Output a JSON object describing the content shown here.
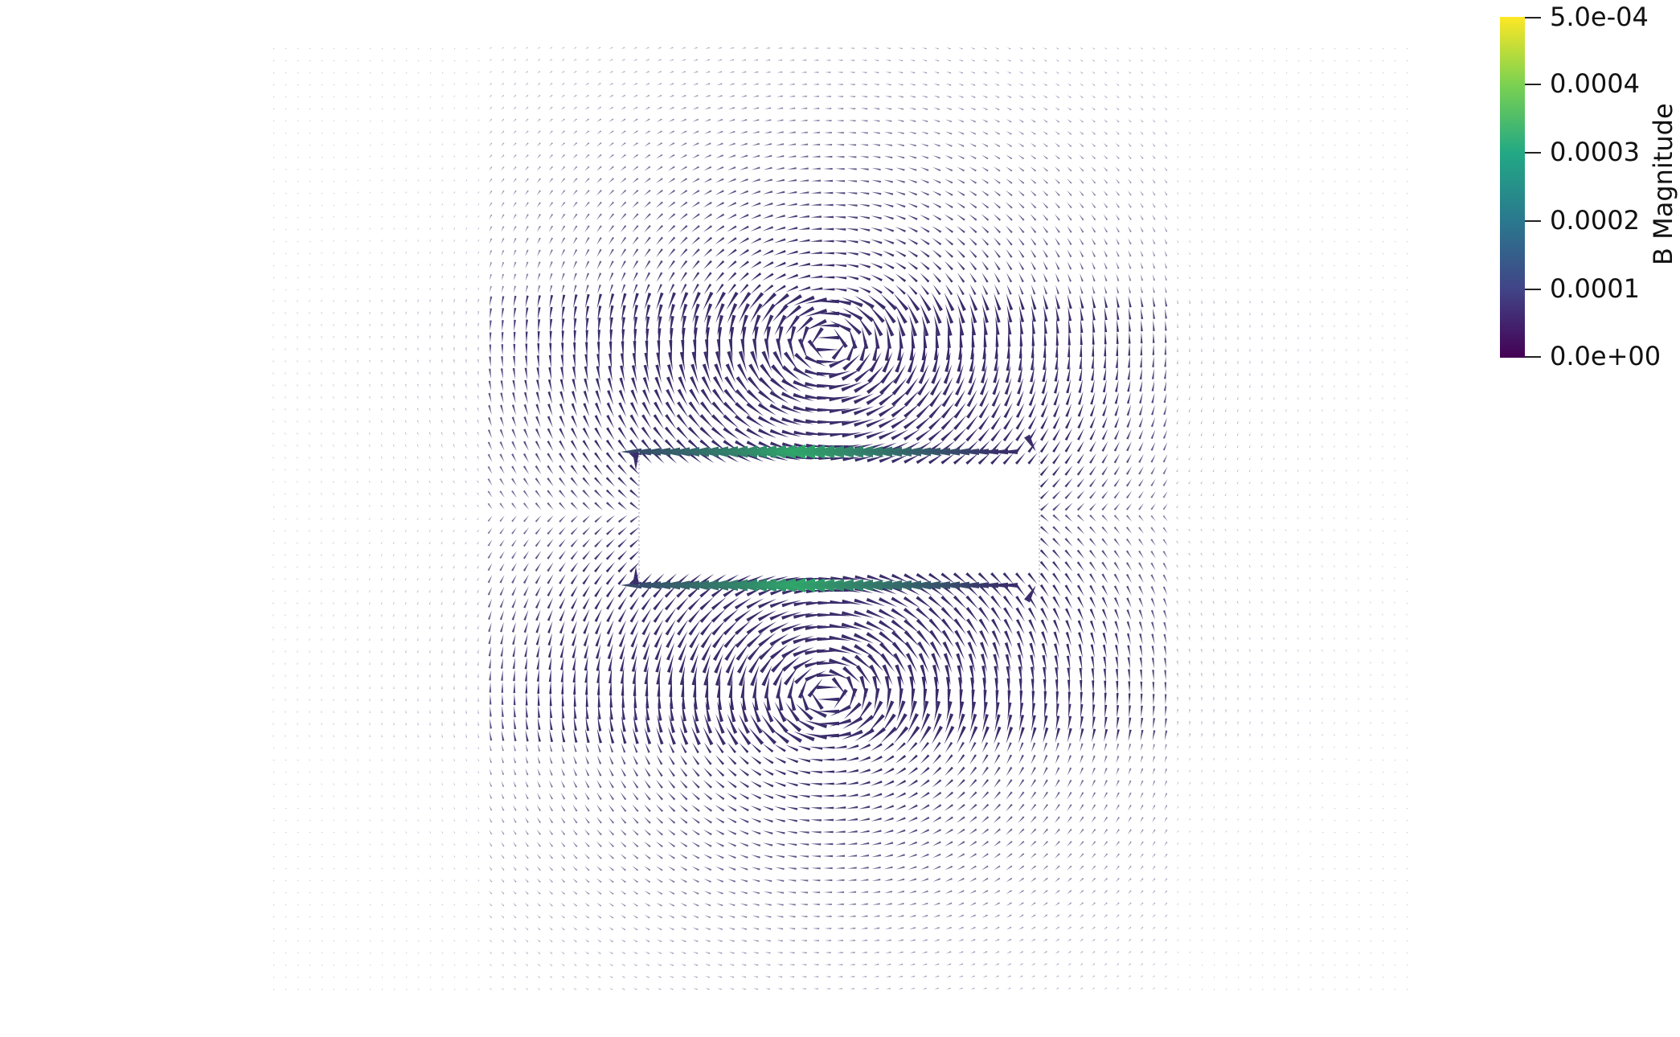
{
  "view": {
    "description_type": "glyph-vector-field",
    "glyph_color_low": "#3b2d6b",
    "glyph_color_high": "#2fa56a",
    "background": "#ffffff"
  },
  "colorbar": {
    "title": "B Magnitude",
    "labels": [
      "5.0e-04",
      "0.0004",
      "0.0003",
      "0.0002",
      "0.0001",
      "0.0e+00"
    ],
    "colormap": "viridis",
    "stops": [
      "#fde725",
      "#7ad151",
      "#22a884",
      "#2a788e",
      "#414487",
      "#440154"
    ]
  }
}
